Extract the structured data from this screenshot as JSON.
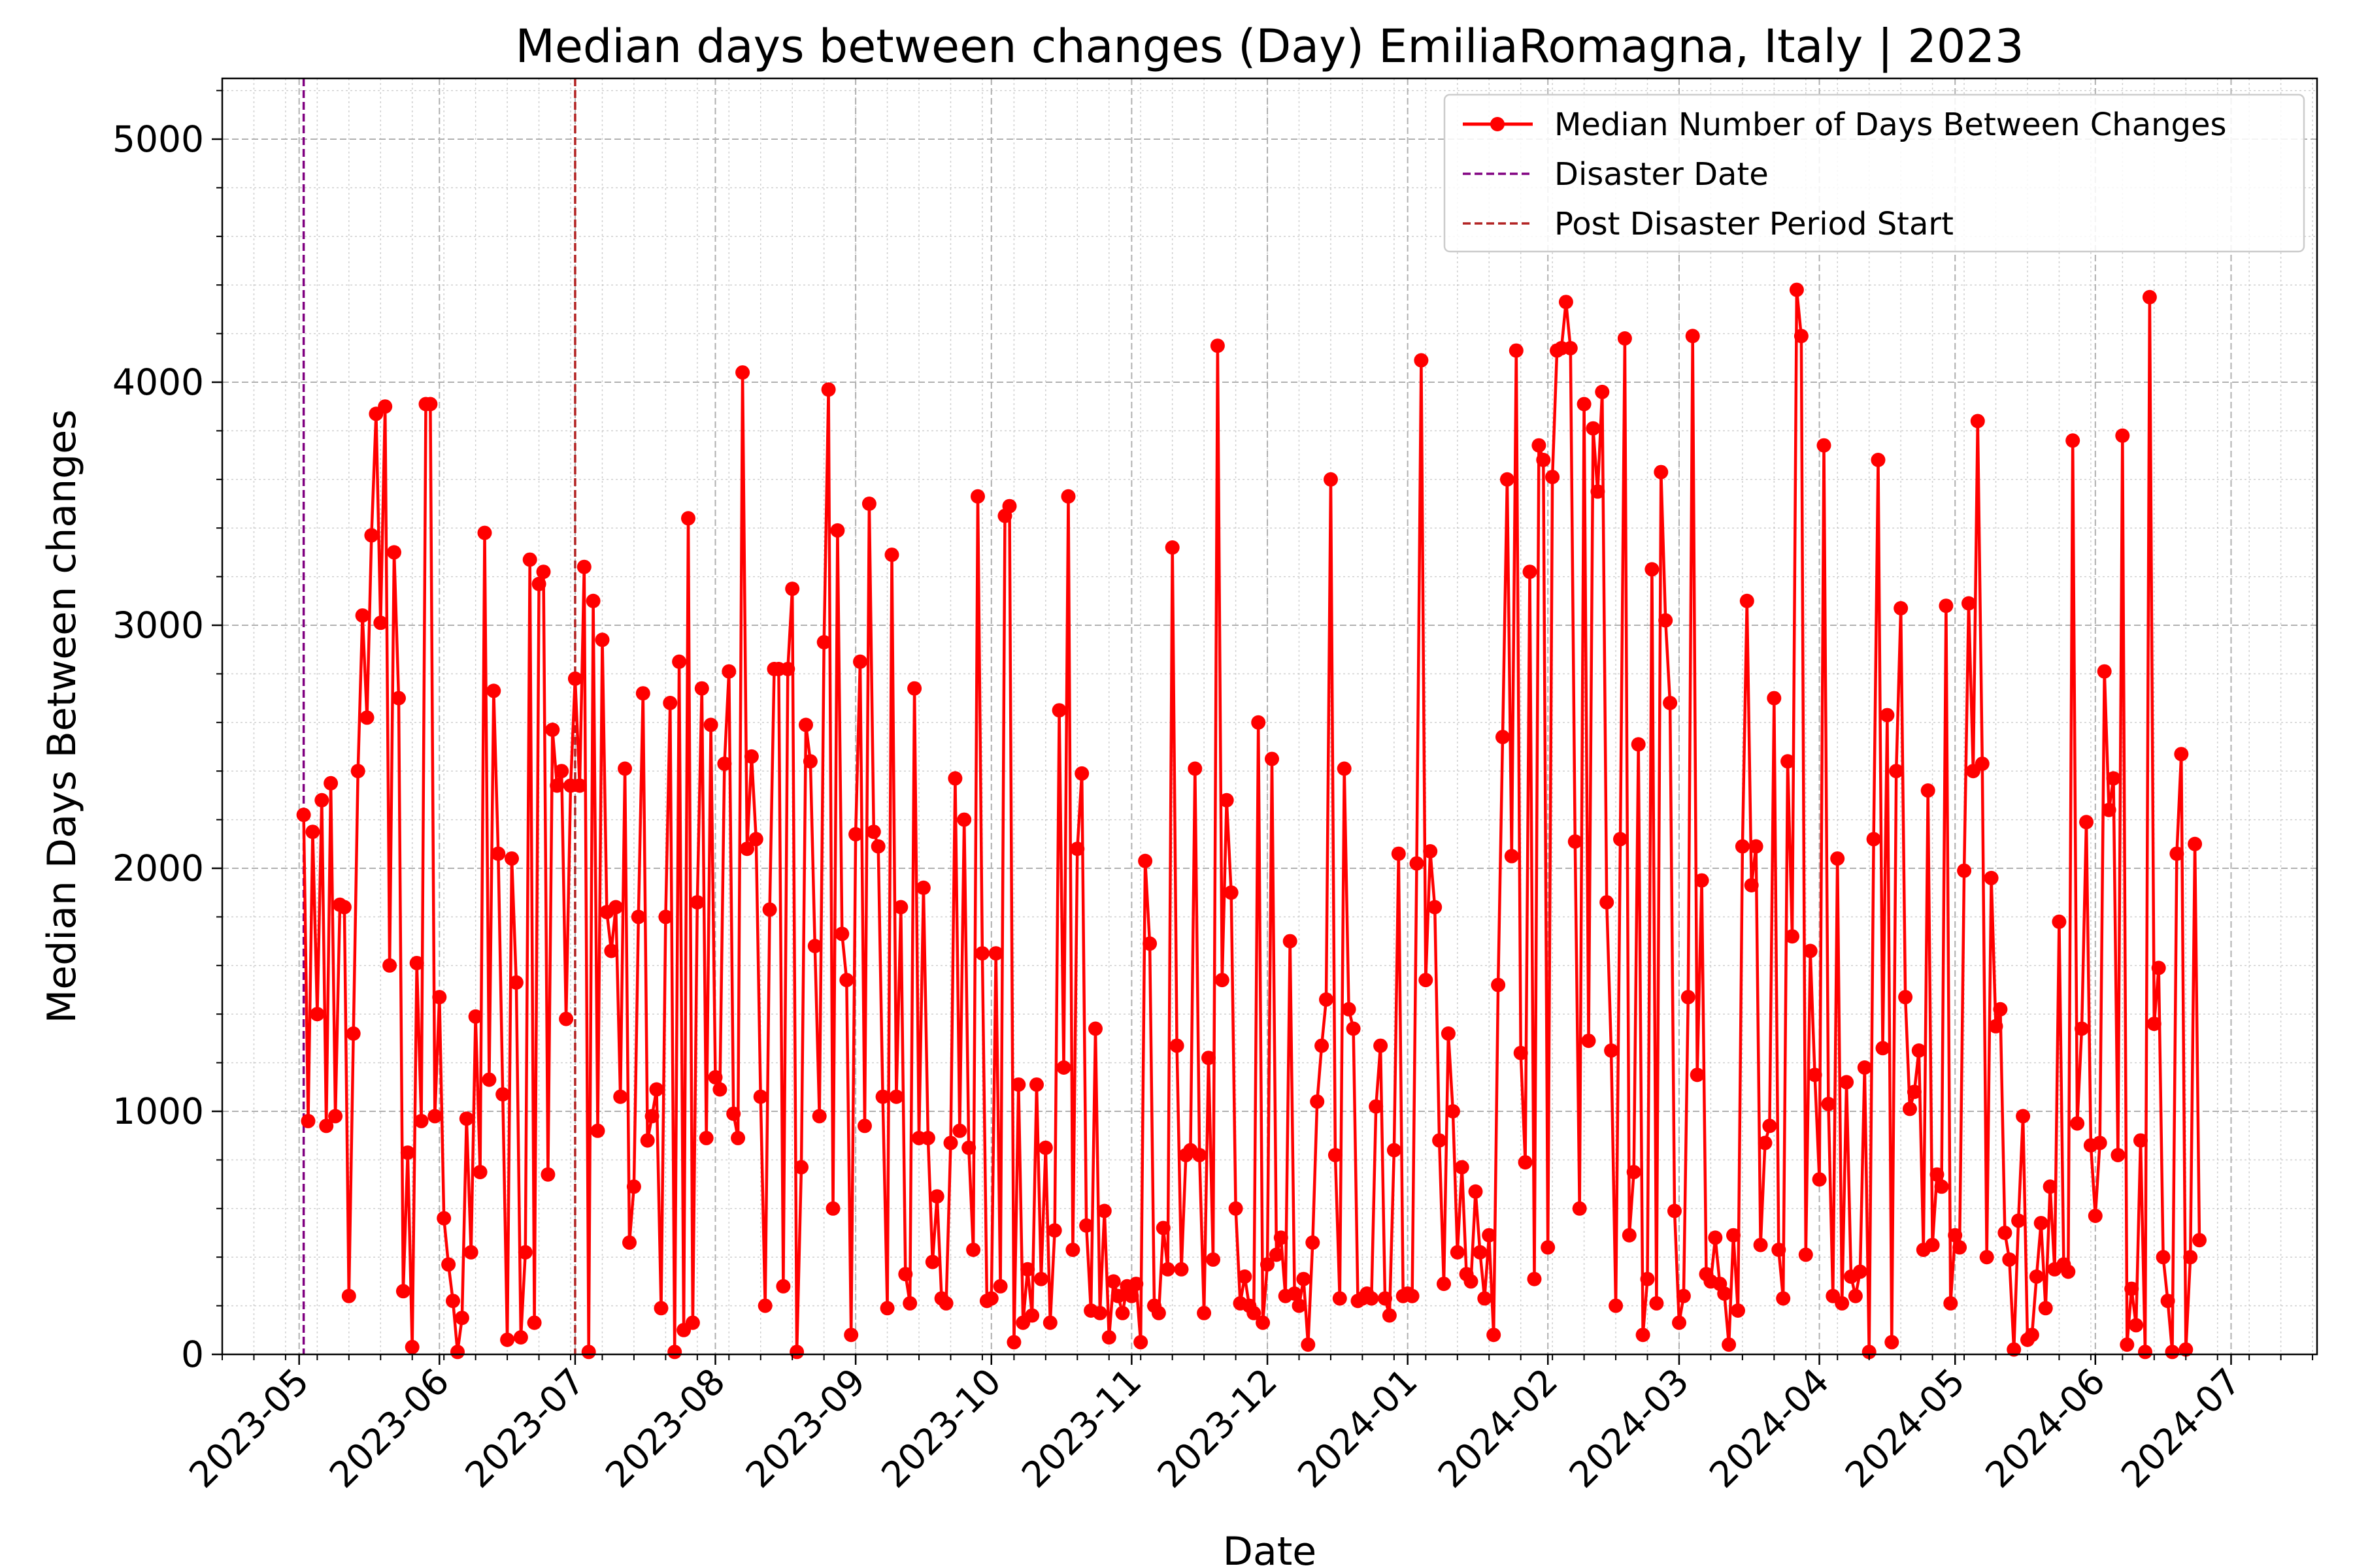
{
  "chart_data": {
    "type": "line",
    "title": "Median days between changes (Day) EmiliaRomagna, Italy | 2023",
    "xlabel": "Date",
    "ylabel": "Median Days Between changes",
    "xlim": [
      "2023-04-14",
      "2024-07-20"
    ],
    "ylim": [
      0,
      5250
    ],
    "y_ticks": [
      0,
      1000,
      2000,
      3000,
      4000,
      5000
    ],
    "x_ticks": [
      "2023-05-01",
      "2023-06-01",
      "2023-07-01",
      "2023-08-01",
      "2023-09-01",
      "2023-10-01",
      "2023-11-01",
      "2023-12-01",
      "2024-01-01",
      "2024-02-01",
      "2024-03-01",
      "2024-04-01",
      "2024-05-01",
      "2024-06-01",
      "2024-07-01"
    ],
    "x_tick_labels": [
      "2023-05",
      "2023-06",
      "2023-07",
      "2023-08",
      "2023-09",
      "2023-10",
      "2023-11",
      "2023-12",
      "2024-01",
      "2024-02",
      "2024-03",
      "2024-04",
      "2024-05",
      "2024-06",
      "2024-07"
    ],
    "grid": true,
    "legend_position": "top-right",
    "colors": {
      "series": "#ff0000",
      "disaster": "#800080",
      "post_disaster": "#b22222",
      "grid": "#b0b0b0"
    },
    "series": [
      {
        "name": "Median Number of Days Between Changes",
        "start_date": "2023-05-02",
        "values": [
          2220,
          960,
          2150,
          1400,
          2280,
          940,
          2350,
          980,
          1850,
          1840,
          240,
          1320,
          2400,
          3040,
          2620,
          3370,
          3870,
          3010,
          3900,
          1600,
          3300,
          2700,
          260,
          830,
          30,
          1610,
          960,
          3910,
          3910,
          980,
          1470,
          560,
          370,
          220,
          10,
          150,
          970,
          420,
          1390,
          750,
          3380,
          1130,
          2730,
          2060,
          1070,
          60,
          2040,
          1530,
          70,
          420,
          3270,
          130,
          3170,
          3220,
          740,
          2570,
          2340,
          2400,
          1380,
          2340,
          2780,
          2340,
          3240,
          10,
          3100,
          920,
          2940,
          1820,
          1660,
          1840,
          1060,
          2410,
          460,
          690,
          1800,
          2720,
          880,
          980,
          1090,
          190,
          1800,
          2680,
          10,
          2850,
          100,
          3440,
          130,
          1860,
          2740,
          890,
          2590,
          1140,
          1090,
          2430,
          2810,
          990,
          890,
          4040,
          2080,
          2460,
          2120,
          1060,
          200,
          1830,
          2820,
          2820,
          280,
          2820,
          3150,
          10,
          770,
          2590,
          2440,
          1680,
          980,
          2930,
          3970,
          600,
          3390,
          1730,
          1540,
          80,
          2140,
          2850,
          940,
          3500,
          2150,
          2090,
          1060,
          190,
          3290,
          1060,
          1840,
          330,
          210,
          2740,
          890,
          1920,
          890,
          380,
          650,
          230,
          210,
          870,
          2370,
          920,
          2200,
          850,
          430,
          3530,
          1650,
          220,
          230,
          1650,
          280,
          3450,
          3490,
          50,
          1110,
          130,
          350,
          160,
          1110,
          310,
          850,
          130,
          510,
          2650,
          1180,
          3530,
          430,
          2080,
          2390,
          530,
          180,
          1340,
          170,
          590,
          70,
          300,
          240,
          170,
          280,
          240,
          290,
          50,
          2030,
          1690,
          200,
          170,
          520,
          350,
          3320,
          1270,
          350,
          820,
          840,
          2410,
          820,
          170,
          1220,
          390,
          4150,
          1540,
          2280,
          1900,
          600,
          210,
          320,
          200,
          170,
          2600,
          130,
          370,
          2450,
          410,
          480,
          240,
          1700,
          250,
          200,
          310,
          40,
          460,
          1040,
          1270,
          1460,
          3600,
          820,
          230,
          2410,
          1420,
          1340,
          220,
          230,
          250,
          230,
          1020,
          1270,
          230,
          160,
          840,
          2060,
          240,
          250,
          240,
          2020,
          4090,
          1540,
          2070,
          1840,
          880,
          290,
          1320,
          1000,
          420,
          770,
          330,
          300,
          670,
          420,
          230,
          490,
          80,
          1520,
          2540,
          3600,
          2050,
          4130,
          1240,
          790,
          3220,
          310,
          3740,
          3680,
          440,
          3610,
          4130,
          4140,
          4330,
          4140,
          2110,
          600,
          3910,
          1290,
          3810,
          3550,
          3960,
          1860,
          1250,
          200,
          2120,
          4180,
          490,
          750,
          2510,
          80,
          310,
          3230,
          210,
          3630,
          3020,
          2680,
          590,
          130,
          240,
          1470,
          4190,
          1150,
          1950,
          330,
          300,
          480,
          290,
          250,
          40,
          490,
          180,
          2090,
          3100,
          1930,
          2090,
          450,
          870,
          940,
          2700,
          430,
          230,
          2440,
          1720,
          4380,
          4190,
          410,
          1660,
          1150,
          720,
          3740,
          1030,
          240,
          2040,
          210,
          1120,
          320,
          240,
          340,
          1180,
          10,
          2120,
          3680,
          1260,
          2630,
          50,
          2400,
          3070,
          1470,
          1010,
          1080,
          1250,
          430,
          2320,
          450,
          740,
          690,
          3080,
          210,
          490,
          440,
          1990,
          3090,
          2400,
          3840,
          2430,
          400,
          1960,
          1350,
          1420,
          500,
          390,
          20,
          550,
          980,
          60,
          80,
          320,
          540,
          190,
          690,
          350,
          1780,
          370,
          340,
          3760,
          950,
          1340,
          2190,
          860,
          570,
          870,
          2810,
          2240,
          2370,
          820,
          3780,
          40,
          270,
          120,
          880,
          10,
          4350,
          1360,
          1590,
          400,
          220,
          10,
          2060,
          2470,
          20,
          400,
          2100,
          470
        ]
      }
    ],
    "vlines": [
      {
        "name": "Disaster Date",
        "x": "2023-05-02",
        "style": "dashed"
      },
      {
        "name": "Post Disaster Period Start",
        "x": "2023-07-01",
        "style": "dashed"
      }
    ]
  }
}
